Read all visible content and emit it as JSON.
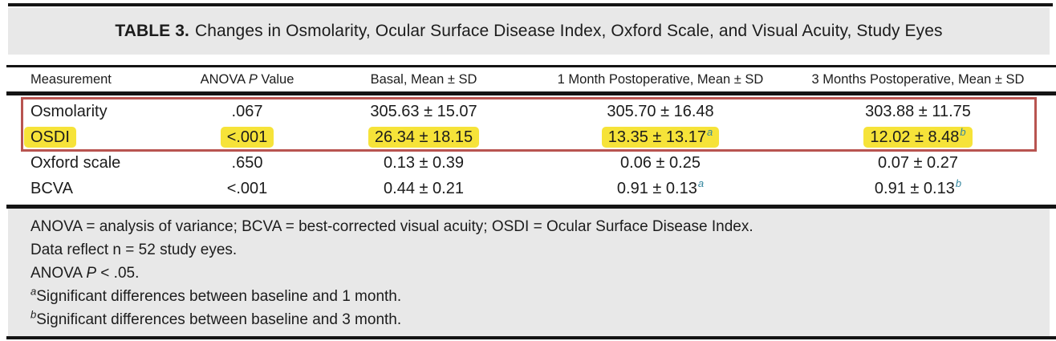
{
  "title": {
    "label": "TABLE 3.",
    "text": "Changes in Osmolarity, Ocular Surface Disease Index, Oxford Scale, and Visual Acuity, Study Eyes"
  },
  "header": {
    "measurement": "Measurement",
    "anova_pre": "ANOVA ",
    "anova_italic": "P",
    "anova_post": " Value",
    "basal": "Basal, Mean ± SD",
    "month1": "1 Month Postoperative, Mean ± SD",
    "month3": "3 Months Postoperative, Mean ± SD"
  },
  "rows": [
    {
      "name": "Osmolarity",
      "anova": ".067",
      "basal": "305.63 ± 15.07",
      "m1": "305.70 ± 16.48",
      "m1_sup": "",
      "m3": "303.88 ± 11.75",
      "m3_sup": "",
      "highlighted": false
    },
    {
      "name": "OSDI",
      "anova": "<.001",
      "basal": "26.34 ± 18.15",
      "m1": "13.35 ± 13.17",
      "m1_sup": "a",
      "m3": "12.02 ± 8.48",
      "m3_sup": "b",
      "highlighted": true
    },
    {
      "name": "Oxford scale",
      "anova": ".650",
      "basal": "0.13 ± 0.39",
      "m1": "0.06 ± 0.25",
      "m1_sup": "",
      "m3": "0.07 ± 0.27",
      "m3_sup": "",
      "highlighted": false
    },
    {
      "name": "BCVA",
      "anova": "<.001",
      "basal": "0.44 ± 0.21",
      "m1": "0.91 ± 0.13",
      "m1_sup": "a",
      "m3": "0.91 ± 0.13",
      "m3_sup": "b",
      "highlighted": false
    }
  ],
  "footnotes": [
    {
      "text": "ANOVA = analysis of variance; BCVA = best-corrected visual acuity; OSDI = Ocular Surface Disease Index."
    },
    {
      "text": "Data reflect n = 52 study eyes."
    },
    {
      "pre": "ANOVA ",
      "italic": "P",
      "post": " < .05."
    },
    {
      "marker": "a",
      "text": "Significant differences between baseline and 1 month."
    },
    {
      "marker": "b",
      "text": "Significant differences between baseline and 3 month."
    }
  ],
  "colors": {
    "rule": "#141414",
    "band_gray": "#e8e8e8",
    "annotation_red_box": "#b85450",
    "annotation_yellow_highlight": "#f6e339",
    "superscript_teal": "#33869e"
  }
}
